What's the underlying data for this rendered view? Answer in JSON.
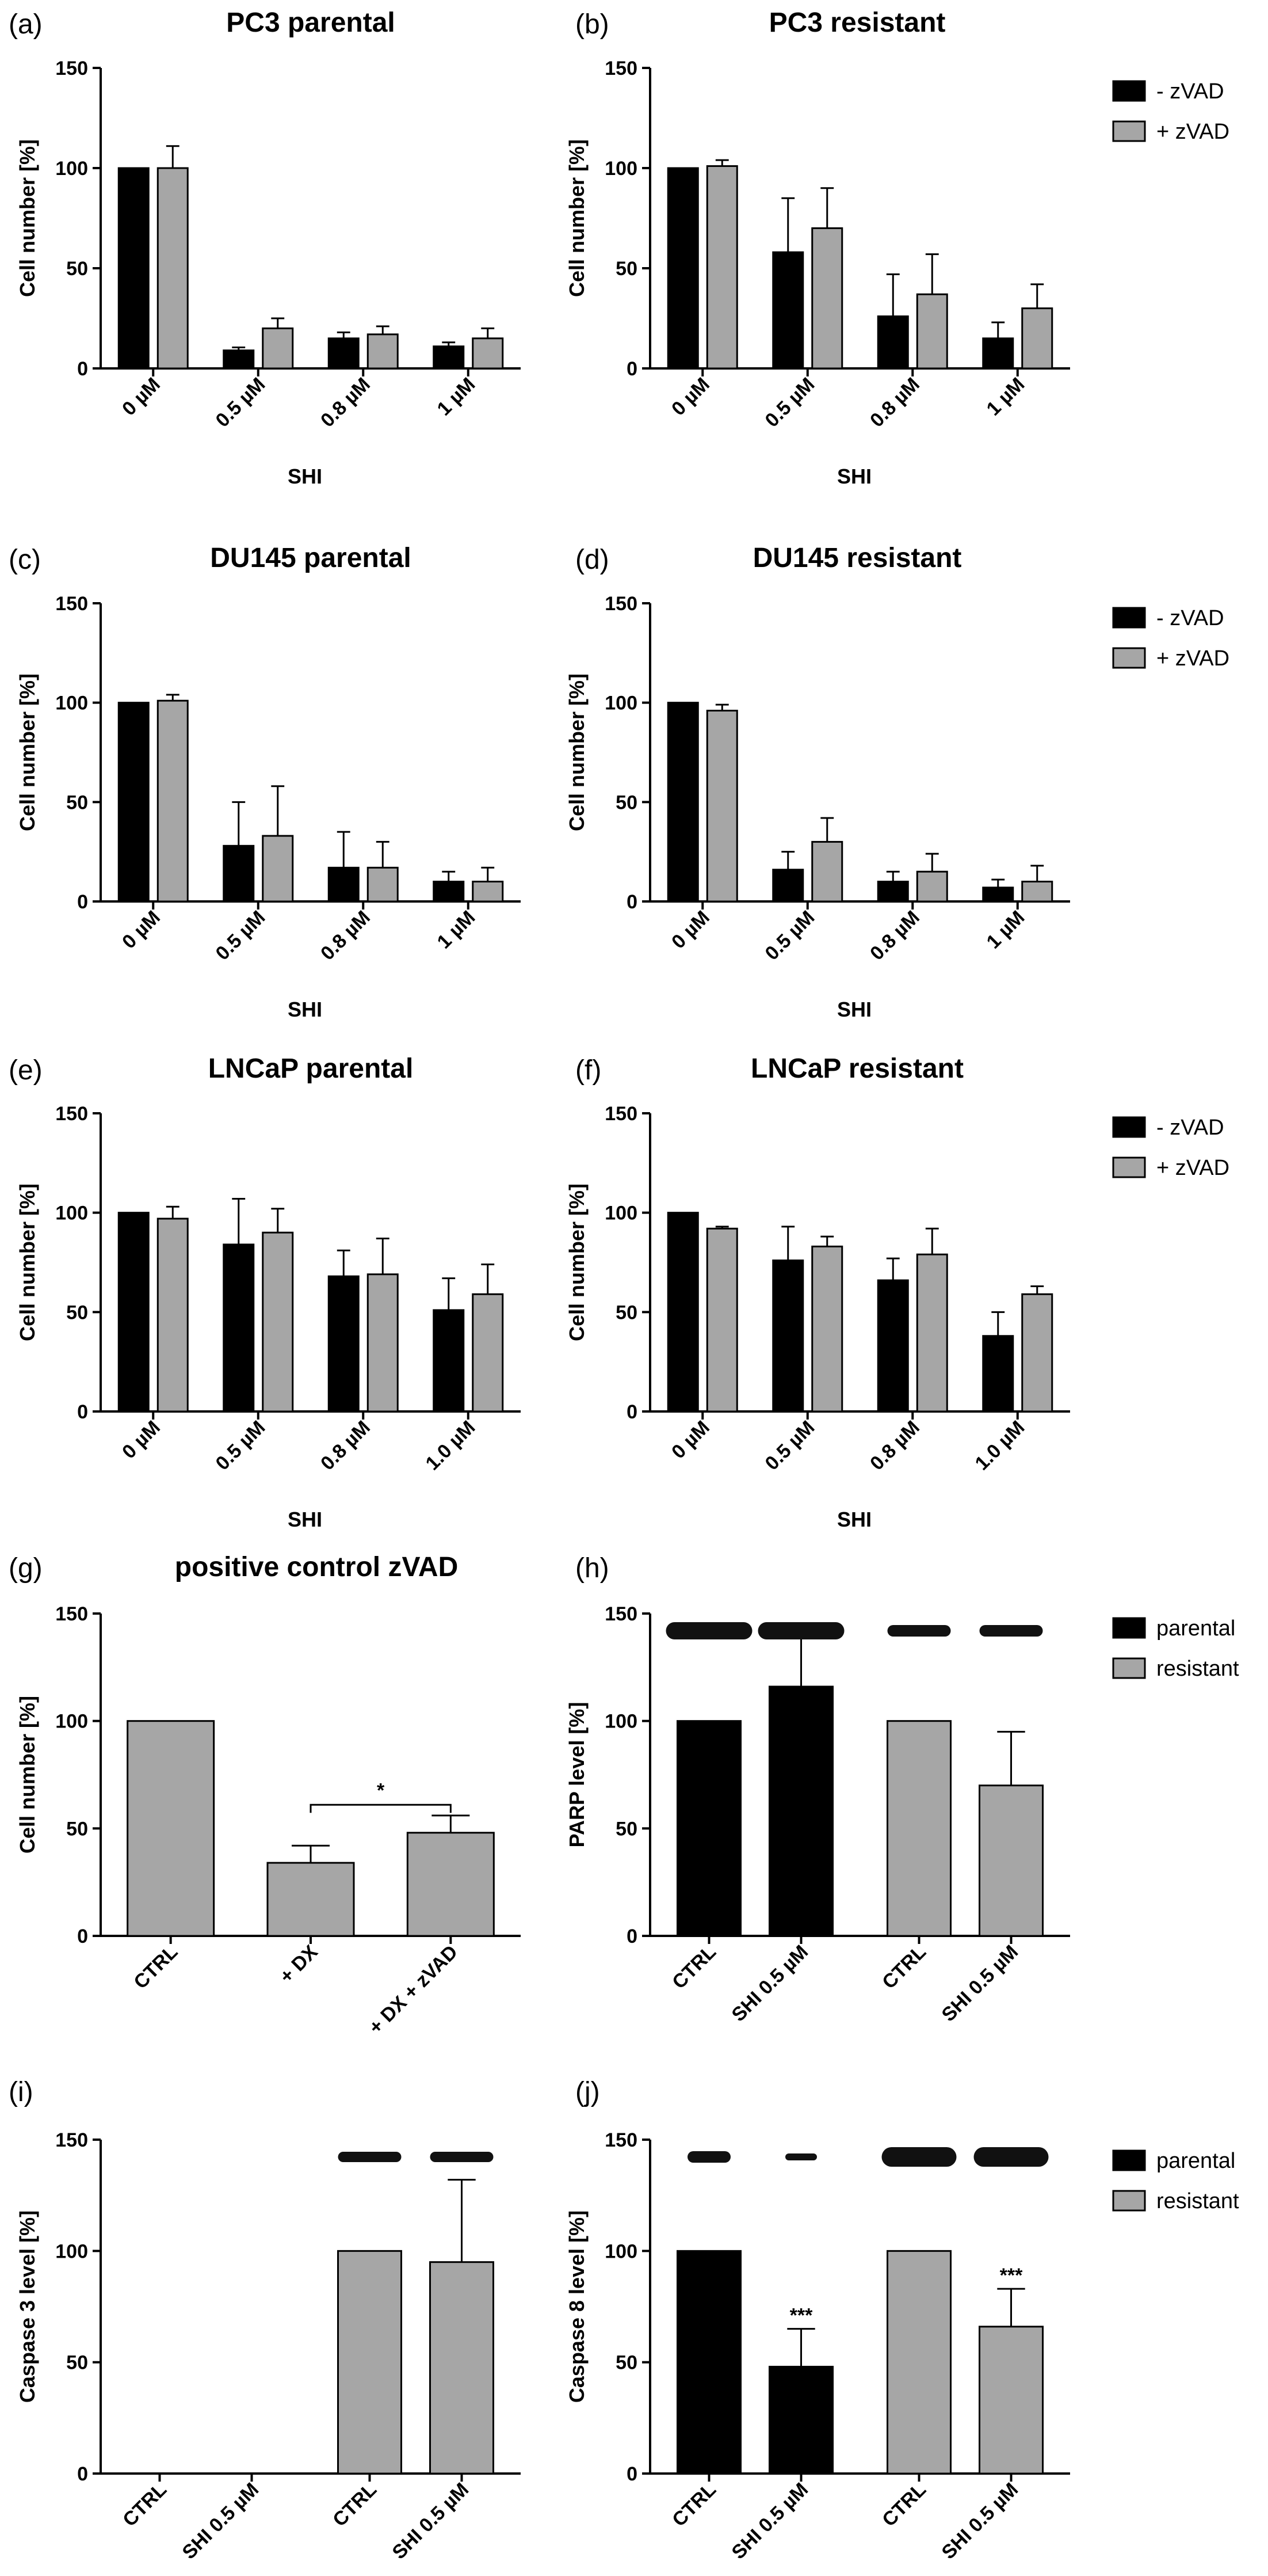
{
  "colors": {
    "black_bar": "#000000",
    "grey_bar": "#a6a6a6",
    "blot": "#111111"
  },
  "legends": {
    "zvad": [
      "- zVAD",
      "+ zVAD"
    ],
    "cell": [
      "parental",
      "resistant"
    ]
  },
  "chart_data": [
    {
      "id": "a",
      "panel_label": "(a)",
      "type": "bar",
      "title": "PC3 parental",
      "xlabel": "SHI",
      "ylabel": "Cell number [%]",
      "ylim": [
        0,
        150
      ],
      "yticks": [
        "0",
        "50",
        "100",
        "150"
      ],
      "categories": [
        "0 µM",
        "0.5 µM",
        "0.8 µM",
        "1 µM"
      ],
      "series": [
        {
          "name": "- zVAD",
          "values": [
            100,
            9,
            15,
            11
          ],
          "errors": [
            0,
            1.5,
            3,
            2
          ]
        },
        {
          "name": "+ zVAD",
          "values": [
            100,
            20,
            17,
            15
          ],
          "errors": [
            11,
            5,
            4,
            5
          ]
        }
      ]
    },
    {
      "id": "b",
      "panel_label": "(b)",
      "type": "bar",
      "title": "PC3 resistant",
      "xlabel": "SHI",
      "ylabel": "Cell number [%]",
      "ylim": [
        0,
        150
      ],
      "yticks": [
        "0",
        "50",
        "100",
        "150"
      ],
      "legend": "zvad",
      "categories": [
        "0 µM",
        "0.5 µM",
        "0.8 µM",
        "1 µM"
      ],
      "series": [
        {
          "name": "- zVAD",
          "values": [
            100,
            58,
            26,
            15
          ],
          "errors": [
            0,
            27,
            21,
            8
          ]
        },
        {
          "name": "+ zVAD",
          "values": [
            101,
            70,
            37,
            30
          ],
          "errors": [
            3,
            20,
            20,
            12
          ]
        }
      ]
    },
    {
      "id": "c",
      "panel_label": "(c)",
      "type": "bar",
      "title": "DU145 parental",
      "xlabel": "SHI",
      "ylabel": "Cell number [%]",
      "ylim": [
        0,
        150
      ],
      "yticks": [
        "0",
        "50",
        "100",
        "150"
      ],
      "categories": [
        "0 µM",
        "0.5 µM",
        "0.8 µM",
        "1 µM"
      ],
      "series": [
        {
          "name": "- zVAD",
          "values": [
            100,
            28,
            17,
            10
          ],
          "errors": [
            0,
            22,
            18,
            5
          ]
        },
        {
          "name": "+ zVAD",
          "values": [
            101,
            33,
            17,
            10
          ],
          "errors": [
            3,
            25,
            13,
            7
          ]
        }
      ]
    },
    {
      "id": "d",
      "panel_label": "(d)",
      "type": "bar",
      "title": "DU145 resistant",
      "xlabel": "SHI",
      "ylabel": "Cell number [%]",
      "ylim": [
        0,
        150
      ],
      "yticks": [
        "0",
        "50",
        "100",
        "150"
      ],
      "legend": "zvad",
      "categories": [
        "0 µM",
        "0.5 µM",
        "0.8 µM",
        "1 µM"
      ],
      "series": [
        {
          "name": "- zVAD",
          "values": [
            100,
            16,
            10,
            7
          ],
          "errors": [
            0,
            9,
            5,
            4
          ]
        },
        {
          "name": "+ zVAD",
          "values": [
            96,
            30,
            15,
            10
          ],
          "errors": [
            3,
            12,
            9,
            8
          ]
        }
      ]
    },
    {
      "id": "e",
      "panel_label": "(e)",
      "type": "bar",
      "title": "LNCaP parental",
      "xlabel": "SHI",
      "ylabel": "Cell number [%]",
      "ylim": [
        0,
        150
      ],
      "yticks": [
        "0",
        "50",
        "100",
        "150"
      ],
      "categories": [
        "0 µM",
        "0.5 µM",
        "0.8 µM",
        "1.0 µM"
      ],
      "series": [
        {
          "name": "- zVAD",
          "values": [
            100,
            84,
            68,
            51
          ],
          "errors": [
            0,
            23,
            13,
            16
          ]
        },
        {
          "name": "+ zVAD",
          "values": [
            97,
            90,
            69,
            59
          ],
          "errors": [
            6,
            12,
            18,
            15
          ]
        }
      ]
    },
    {
      "id": "f",
      "panel_label": "(f)",
      "type": "bar",
      "title": "LNCaP resistant",
      "xlabel": "SHI",
      "ylabel": "Cell number [%]",
      "ylim": [
        0,
        150
      ],
      "yticks": [
        "0",
        "50",
        "100",
        "150"
      ],
      "legend": "zvad",
      "categories": [
        "0 µM",
        "0.5 µM",
        "0.8 µM",
        "1.0 µM"
      ],
      "series": [
        {
          "name": "- zVAD",
          "values": [
            100,
            76,
            66,
            38
          ],
          "errors": [
            0,
            17,
            11,
            12
          ]
        },
        {
          "name": "+ zVAD",
          "values": [
            92,
            83,
            79,
            59
          ],
          "errors": [
            1,
            5,
            13,
            4
          ]
        }
      ]
    },
    {
      "id": "g",
      "panel_label": "(g)",
      "type": "bar",
      "title": "positive control zVAD",
      "xlabel": "",
      "ylabel": "Cell number [%]",
      "ylim": [
        0,
        150
      ],
      "yticks": [
        "0",
        "50",
        "100",
        "150"
      ],
      "categories": [
        "CTRL",
        "+ DX",
        "+ DX + zVAD"
      ],
      "values": [
        100,
        34,
        48
      ],
      "errors": [
        0,
        8,
        8
      ],
      "annotation": {
        "text": "*",
        "from": 1,
        "to": 2,
        "y": 61
      }
    },
    {
      "id": "h",
      "panel_label": "(h)",
      "type": "bar",
      "title": "",
      "xlabel": "",
      "ylabel": "PARP level [%]",
      "ylim": [
        0,
        150
      ],
      "yticks": [
        "0",
        "50",
        "100",
        "150"
      ],
      "legend": "cell",
      "blots": true,
      "categories": [
        "CTRL",
        "SHI 0.5 µM",
        "CTRL",
        "SHI 0.5 µM"
      ],
      "groups": [
        "parental",
        "parental",
        "resistant",
        "resistant"
      ],
      "values": [
        100,
        116,
        100,
        70
      ],
      "errors": [
        0,
        23,
        0,
        25
      ]
    },
    {
      "id": "i",
      "panel_label": "(i)",
      "type": "bar",
      "title": "",
      "xlabel": "",
      "ylabel": "Caspase 3 level [%]",
      "ylim": [
        0,
        150
      ],
      "yticks": [
        "0",
        "50",
        "100",
        "150"
      ],
      "blots": true,
      "categories": [
        "CTRL",
        "SHI 0.5 µM",
        "CTRL",
        "SHI 0.5 µM"
      ],
      "groups": [
        "parental",
        "parental",
        "resistant",
        "resistant"
      ],
      "values": [
        0,
        0,
        100,
        95
      ],
      "errors": [
        0,
        0,
        0,
        37
      ]
    },
    {
      "id": "j",
      "panel_label": "(j)",
      "type": "bar",
      "title": "",
      "xlabel": "",
      "ylabel": "Caspase 8 level [%]",
      "ylim": [
        0,
        150
      ],
      "yticks": [
        "0",
        "50",
        "100",
        "150"
      ],
      "legend": "cell",
      "blots": true,
      "categories": [
        "CTRL",
        "SHI 0.5 µM",
        "CTRL",
        "SHI 0.5 µM"
      ],
      "groups": [
        "parental",
        "parental",
        "resistant",
        "resistant"
      ],
      "values": [
        100,
        48,
        100,
        66
      ],
      "errors": [
        0,
        17,
        0,
        17
      ],
      "significance": [
        "",
        "***",
        "",
        "***"
      ]
    }
  ]
}
